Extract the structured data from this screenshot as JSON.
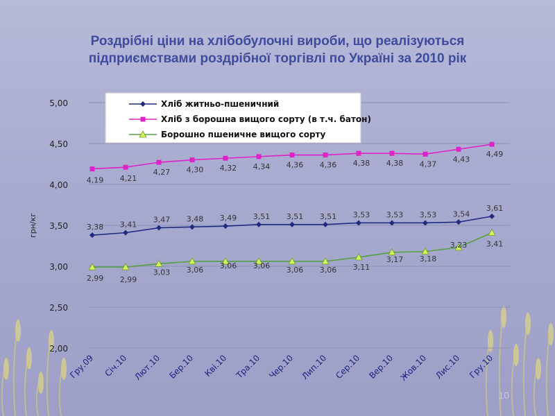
{
  "slide": {
    "title_line1": "Роздрібні ціни на хлібобулочні вироби, що реалізуються",
    "title_line2": "підприємствами роздрібної торгівлі по Україні за 2010 рік",
    "page_number": "10"
  },
  "chart_data": {
    "type": "line",
    "title": "Роздрібні ціни на хлібобулочні вироби, що реалізуються підприємствами роздрібної торгівлі по Україні за 2010 рік",
    "ylabel": "грн/кг",
    "xlabel": "",
    "ylim": [
      2.0,
      5.0
    ],
    "yticks": [
      "2,00",
      "2,50",
      "3,00",
      "3,50",
      "4,00",
      "4,50",
      "5,00"
    ],
    "grid": true,
    "legend_position": "top",
    "categories": [
      "Гру.09",
      "Січ.10",
      "Лют.10",
      "Бер.10",
      "Кві.10",
      "Тра.10",
      "Чер.10",
      "Лип.10",
      "Сер.10",
      "Вер.10",
      "Жов.10",
      "Лис.10",
      "Гру.10"
    ],
    "series": [
      {
        "name": "Хліб житньо-пшеничний",
        "color": "#1f2a80",
        "marker": "diamond",
        "values": [
          3.38,
          3.41,
          3.47,
          3.48,
          3.49,
          3.51,
          3.51,
          3.51,
          3.53,
          3.53,
          3.53,
          3.54,
          3.61
        ],
        "labels": [
          "3,38",
          "3,41",
          "3,47",
          "3,48",
          "3,49",
          "3,51",
          "3,51",
          "3,51",
          "3,53",
          "3,53",
          "3,53",
          "3,54",
          "3,61"
        ]
      },
      {
        "name": "Хліб з борошна вищого сорту (в т.ч. батон)",
        "color": "#e020c8",
        "marker": "square",
        "values": [
          4.19,
          4.21,
          4.27,
          4.3,
          4.32,
          4.34,
          4.36,
          4.36,
          4.38,
          4.38,
          4.37,
          4.43,
          4.49
        ],
        "labels": [
          "4,19",
          "4,21",
          "4,27",
          "4,30",
          "4,32",
          "4,34",
          "4,36",
          "4,36",
          "4,38",
          "4,38",
          "4,37",
          "4,43",
          "4,49"
        ]
      },
      {
        "name": "Борошно пшеничне вищого сорту",
        "color": "#55a040",
        "marker": "triangle",
        "values": [
          2.99,
          2.99,
          3.03,
          3.06,
          3.06,
          3.06,
          3.06,
          3.06,
          3.11,
          3.17,
          3.18,
          3.23,
          3.41
        ],
        "labels": [
          "2,99",
          "2,99",
          "3,03",
          "3,06",
          "3,06",
          "3,06",
          "3,06",
          "3,06",
          "3,11",
          "3,17",
          "3,18",
          "3,23",
          "3,41"
        ]
      }
    ]
  }
}
